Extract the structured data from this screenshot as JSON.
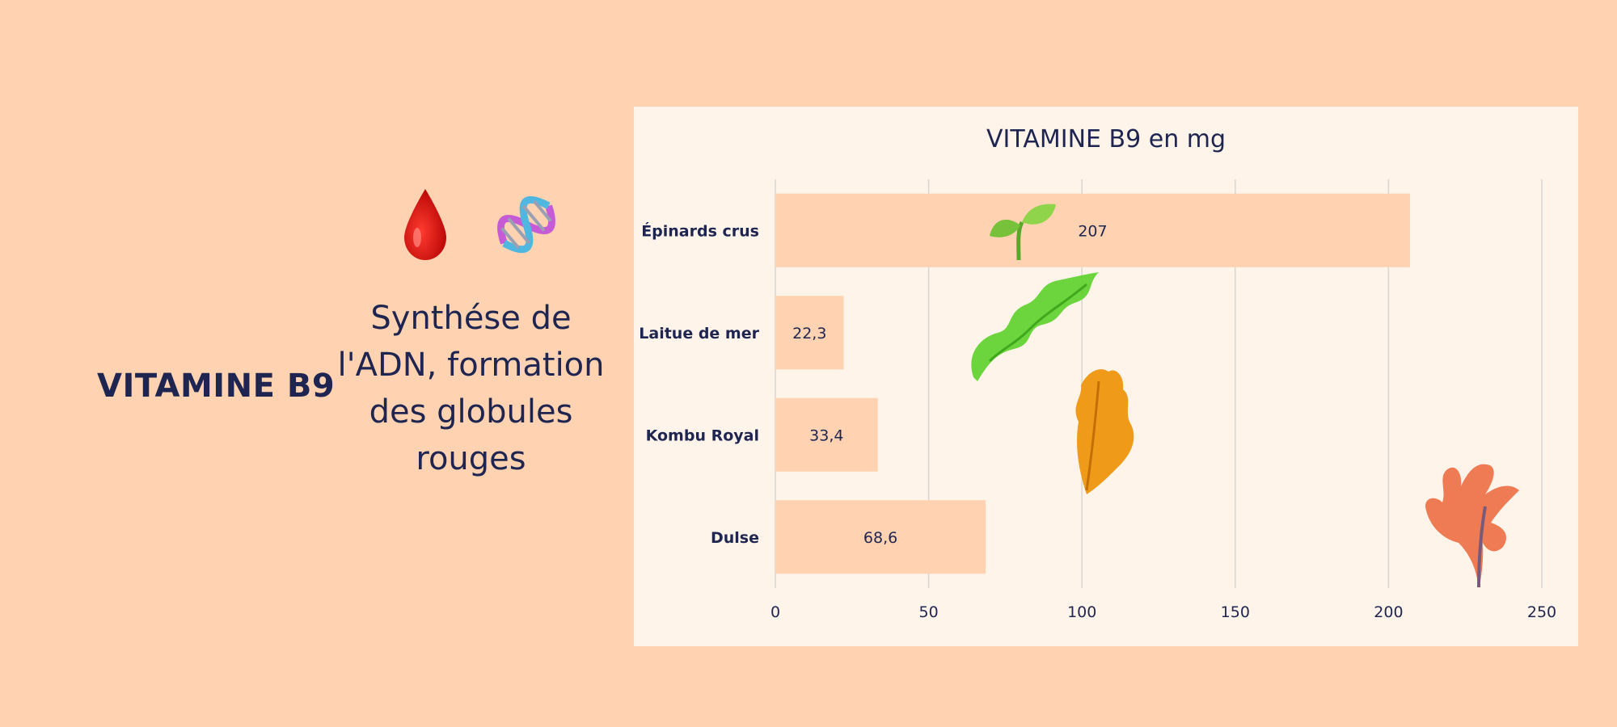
{
  "left": {
    "title": "VITAMINE B9",
    "description": "Synthése de l'ADN, formation des globules rouges",
    "icons": [
      "blood-drop-icon",
      "dna-icon"
    ]
  },
  "colors": {
    "background": "#ffd3b1",
    "card": "#fff4ea",
    "bar": "#ffd3b1",
    "text": "#1e2550",
    "grid": "#d9d5d0"
  },
  "chart_data": {
    "type": "bar",
    "orientation": "horizontal",
    "title": "VITAMINE B9 en mg",
    "categories": [
      "Épinards crus",
      "Laitue de mer",
      "Kombu Royal",
      "Dulse"
    ],
    "values": [
      207,
      22.3,
      33.4,
      68.6
    ],
    "value_labels": [
      "207",
      "22,3",
      "33,4",
      "68,6"
    ],
    "xlim": [
      0,
      250
    ],
    "xticks": [
      "0",
      "50",
      "100",
      "150",
      "200",
      "250"
    ],
    "grid": true,
    "decorations": [
      "sprout-icon",
      "sea-lettuce-icon",
      "kombu-icon",
      "dulse-icon"
    ]
  }
}
